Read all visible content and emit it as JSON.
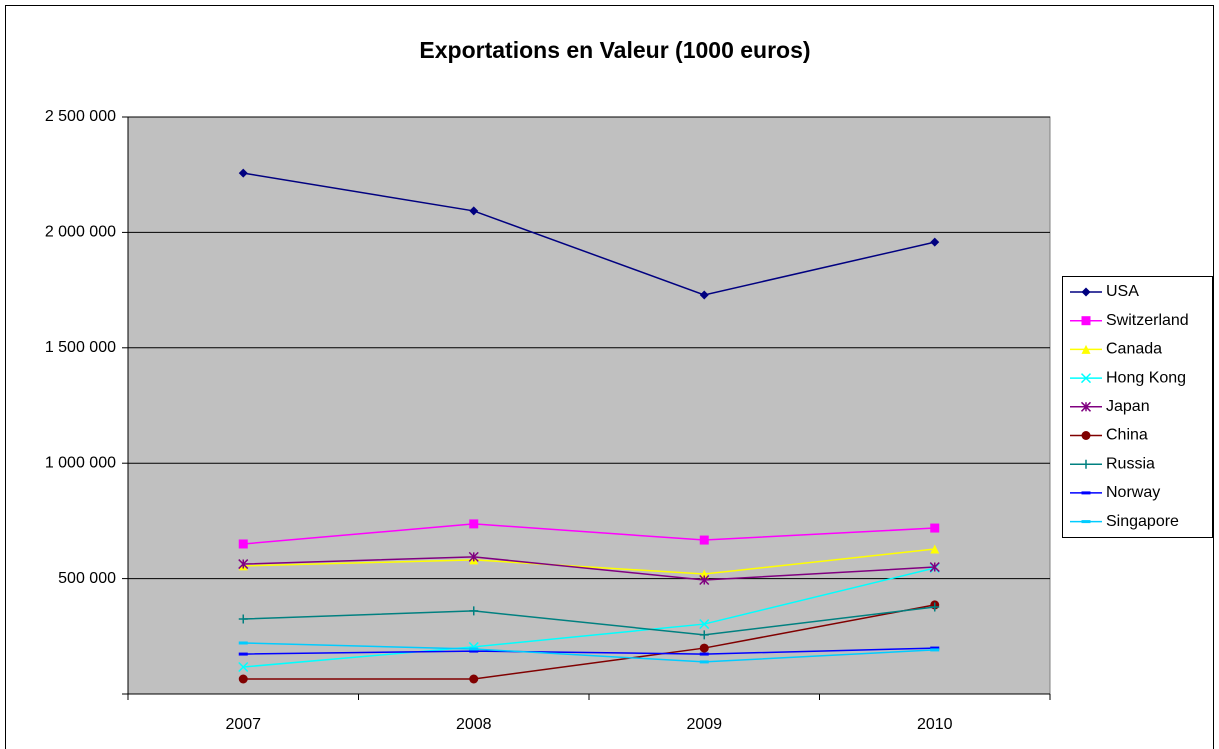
{
  "chart_data": {
    "type": "line",
    "title": "Exportations en Valeur (1000 euros)",
    "categories": [
      "2007",
      "2008",
      "2009",
      "2010"
    ],
    "ylim": [
      0,
      2500000
    ],
    "yticks": [
      {
        "value": 500000,
        "label": "500 000"
      },
      {
        "value": 1000000,
        "label": "1 000 000"
      },
      {
        "value": 1500000,
        "label": "1 500 000"
      },
      {
        "value": 2000000,
        "label": "2 000 000"
      },
      {
        "value": 2500000,
        "label": "2 500 000"
      }
    ],
    "grid": true,
    "legend": "right",
    "series": [
      {
        "name": "USA",
        "color": "#000080",
        "marker": "diamond",
        "values": [
          2257000,
          2093000,
          1729000,
          1958000
        ]
      },
      {
        "name": "Switzerland",
        "color": "#ff00ff",
        "marker": "square",
        "values": [
          650000,
          737000,
          667000,
          719000
        ]
      },
      {
        "name": "Canada",
        "color": "#ffff00",
        "marker": "triangle",
        "values": [
          555000,
          581000,
          520000,
          628000
        ]
      },
      {
        "name": "Hong Kong",
        "color": "#00ffff",
        "marker": "x",
        "values": [
          117000,
          204000,
          303000,
          546000
        ]
      },
      {
        "name": "Japan",
        "color": "#800080",
        "marker": "star",
        "values": [
          563000,
          594000,
          494000,
          550000
        ]
      },
      {
        "name": "China",
        "color": "#800000",
        "marker": "circle",
        "values": [
          65000,
          65000,
          199000,
          386000
        ]
      },
      {
        "name": "Russia",
        "color": "#008080",
        "marker": "plus",
        "values": [
          325000,
          360000,
          256000,
          377000
        ]
      },
      {
        "name": "Norway",
        "color": "#0000ff",
        "marker": "dash",
        "values": [
          173000,
          186000,
          173000,
          199000
        ]
      },
      {
        "name": "Singapore",
        "color": "#00ccff",
        "marker": "dash",
        "values": [
          221000,
          195000,
          139000,
          191000
        ]
      }
    ]
  }
}
